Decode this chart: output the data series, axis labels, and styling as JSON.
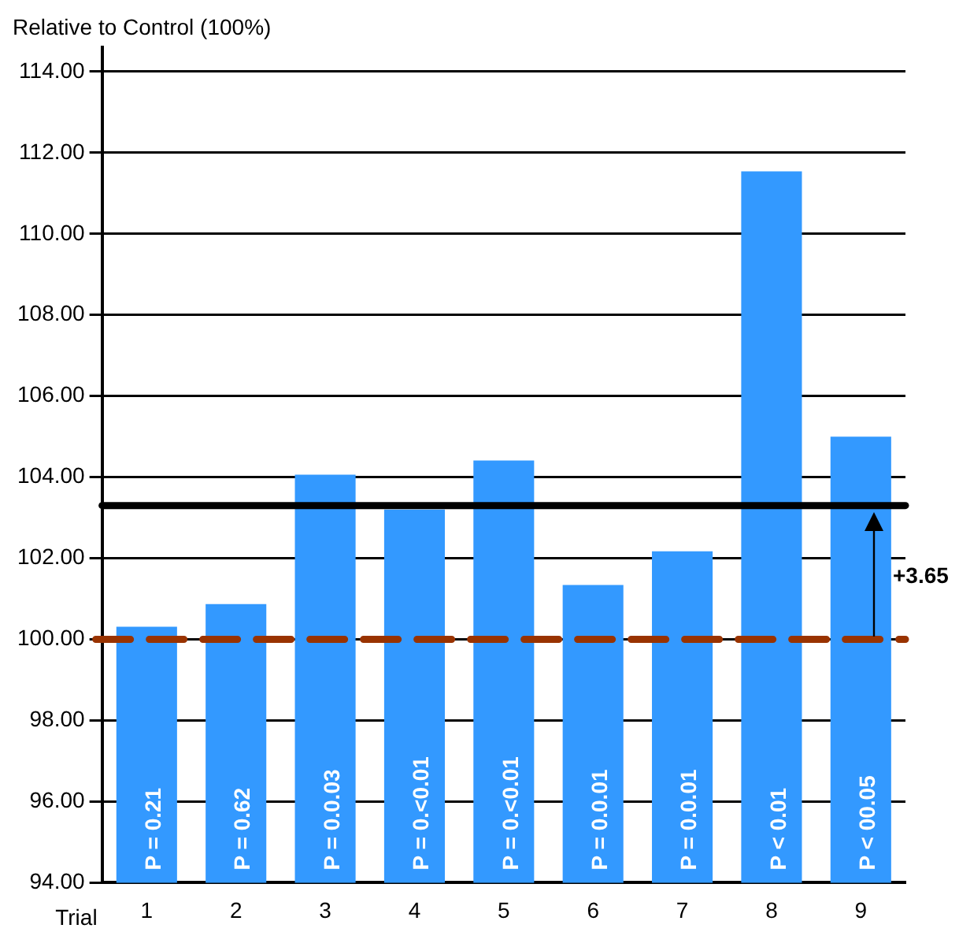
{
  "chart_data": {
    "type": "bar",
    "ylabel": "Relative to Control (100%)",
    "xlabel": "Trial",
    "categories": [
      "1",
      "2",
      "3",
      "4",
      "5",
      "6",
      "7",
      "8",
      "9"
    ],
    "values": [
      100.31,
      100.87,
      104.06,
      103.2,
      104.41,
      101.34,
      102.17,
      111.54,
      105.0
    ],
    "color": "#3399ff",
    "ylim": [
      94,
      114.6
    ],
    "yticks": [
      {
        "value": 94,
        "label": "94.00"
      },
      {
        "value": 96,
        "label": "96.00"
      },
      {
        "value": 98,
        "label": "98.00"
      },
      {
        "value": 100,
        "label": "100.00"
      },
      {
        "value": 102,
        "label": "102.00"
      },
      {
        "value": 104,
        "label": "104.00"
      },
      {
        "value": 106,
        "label": "106.00"
      },
      {
        "value": 108,
        "label": "108.00"
      },
      {
        "value": 110,
        "label": "110.00"
      },
      {
        "value": 112,
        "label": "112.00"
      },
      {
        "value": 114,
        "label": "114.00"
      }
    ],
    "grid": "y",
    "ref_lines": [
      {
        "axis": "y",
        "value": 100,
        "color": "#993300",
        "line_style": "dashed"
      },
      {
        "axis": "y",
        "value": 103.3,
        "color": "#000000",
        "line_style": "solid"
      }
    ],
    "annotations": [
      "P = 0.21",
      "P = 0.62",
      "P = 0.0.03",
      "P = 0.<0.01",
      "P = 0.<0.01",
      "P = 0.0.01",
      "P = 0.0.01",
      "P < 0.01",
      "P < 00.05",
      "+3.65"
    ]
  }
}
